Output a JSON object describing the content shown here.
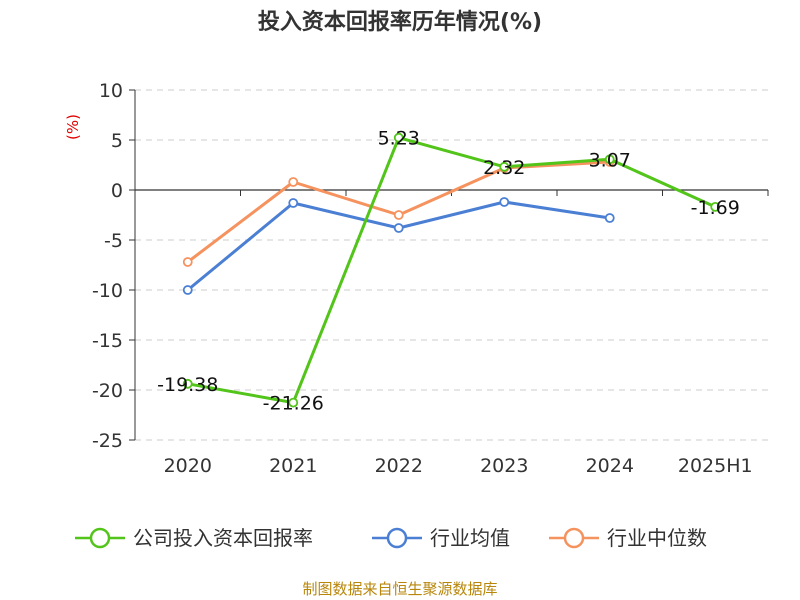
{
  "chart_data": {
    "type": "line",
    "title": "投入资本回报率历年情况(%)",
    "ylabel": "(%)",
    "categories": [
      "2020",
      "2021",
      "2022",
      "2023",
      "2024",
      "2025H1"
    ],
    "ylim": [
      -25,
      10
    ],
    "yticks": [
      10,
      5,
      0,
      -5,
      -10,
      -15,
      -20,
      -25
    ],
    "grid": true,
    "legend_position": "bottom",
    "series": [
      {
        "name": "公司投入资本回报率",
        "color": "#52c41a",
        "values": [
          -19.38,
          -21.26,
          5.23,
          2.32,
          3.07,
          -1.69
        ],
        "labels": [
          "-19.38",
          "-21.26",
          "5.23",
          "2.32",
          "3.07",
          "-1.69"
        ]
      },
      {
        "name": "行业均值",
        "color": "#4a7fd4",
        "values": [
          -10.0,
          -1.3,
          -3.8,
          -1.2,
          -2.8,
          null
        ]
      },
      {
        "name": "行业中位数",
        "color": "#f5925e",
        "values": [
          -7.2,
          0.8,
          -2.5,
          2.2,
          2.8,
          null
        ]
      }
    ],
    "source": "制图数据来自恒生聚源数据库"
  }
}
